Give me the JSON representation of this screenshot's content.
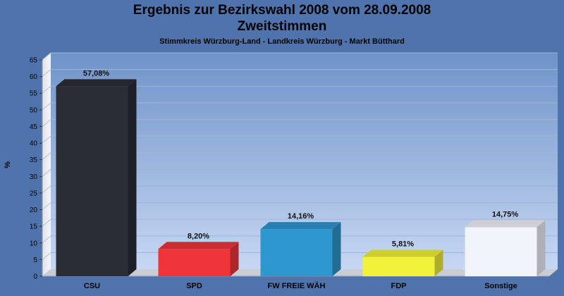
{
  "chart_data": {
    "type": "bar",
    "title": "Ergebnis zur Bezirkswahl 2008 vom 28.09.2008",
    "title_line2": "Zweitstimmen",
    "subtitle": "Stimmkreis Würzburg-Land - Landkreis Würzburg - Markt Bütthard",
    "ylabel": "%",
    "ylim": [
      0,
      65
    ],
    "yticks": [
      0,
      5,
      10,
      15,
      20,
      25,
      30,
      35,
      40,
      45,
      50,
      55,
      60,
      65
    ],
    "categories": [
      "CSU",
      "SPD",
      "FW FREIE WÄH",
      "FDP",
      "Sonstige"
    ],
    "values": [
      57.08,
      8.2,
      14.16,
      5.81,
      14.75
    ],
    "value_labels": [
      "57,08%",
      "8,20%",
      "14,16%",
      "5,81%",
      "14,75%"
    ],
    "colors": [
      "#2a2d36",
      "#f0353a",
      "#2f97cf",
      "#f2f23a",
      "#f2f4fb"
    ],
    "grid": true,
    "legend": "none"
  }
}
